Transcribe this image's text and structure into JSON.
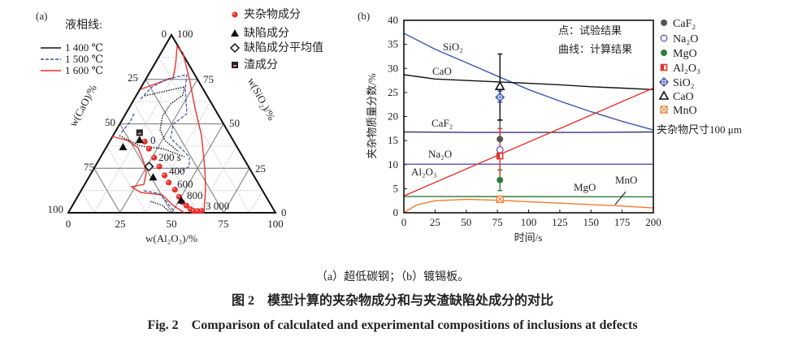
{
  "caption": {
    "sub": "（a）超低碳钢；（b）镀锡板。",
    "cn": "图 2　模型计算的夹杂物成分和与夹渣缺陷处成分的对比",
    "en": "Fig. 2　Comparison of calculated and experimental compositions of inclusions at defects"
  },
  "chart_data": [
    {
      "panel": "(a)",
      "type": "scatter",
      "subtype": "ternary",
      "axes": {
        "bottom": {
          "label": "w(Al₂O₃)/%",
          "ticks": [
            "0",
            "25",
            "50",
            "75",
            "100"
          ]
        },
        "left": {
          "label": "w(CaO)/%",
          "ticks": [
            "0",
            "25",
            "50",
            "75",
            "100"
          ]
        },
        "right": {
          "label": "w(SiO₂)/%",
          "ticks": [
            "100",
            "75",
            "50",
            "25",
            "0"
          ]
        }
      },
      "legend_title": "液相线:",
      "liquidus_legend": [
        {
          "label": "1 400 ℃",
          "color": "#111111",
          "style": "solid"
        },
        {
          "label": "1 500 ℃",
          "color": "#3b4fa8",
          "style": "dashed"
        },
        {
          "label": "1 600 ℃",
          "color": "#e8322b",
          "style": "solid"
        }
      ],
      "marker_legend": [
        {
          "label": "夹杂物成分",
          "marker": "circle",
          "color": "#e8322b"
        },
        {
          "label": "缺陷成分",
          "marker": "triangle",
          "color": "#111111"
        },
        {
          "label": "缺陷成分平均值",
          "marker": "diamond",
          "color": "#111111"
        },
        {
          "label": "渣成分",
          "marker": "square",
          "color": "#111111"
        }
      ],
      "series": [
        {
          "name": "夹杂物成分",
          "points_CaO_Al2O3_SiO2": [
            [
              43,
              17,
              40
            ],
            [
              43,
              21,
              36
            ],
            [
              43,
              26,
              31
            ],
            [
              43,
              31,
              26
            ],
            [
              43,
              36,
              21
            ],
            [
              43,
              40,
              17
            ],
            [
              42,
              45,
              13
            ],
            [
              42,
              49,
              9
            ],
            [
              42,
              52,
              6
            ],
            [
              41,
              55,
              4
            ],
            [
              40,
              58,
              2
            ],
            [
              39,
              60,
              1
            ],
            [
              37,
              62,
              1
            ],
            [
              35,
              64,
              1
            ]
          ]
        },
        {
          "name": "缺陷成分",
          "points_CaO_Al2O3_SiO2": [
            [
              45,
              14,
              41
            ],
            [
              55,
              8,
              37
            ],
            [
              49,
              31,
              20
            ],
            [
              42,
              51,
              7
            ]
          ]
        },
        {
          "name": "缺陷成分平均值",
          "points_CaO_Al2O3_SiO2": [
            [
              48,
              26,
              26
            ]
          ]
        },
        {
          "name": "渣成分",
          "points_CaO_Al2O3_SiO2": [
            [
              43,
              12,
              45
            ]
          ]
        }
      ],
      "time_labels": [
        {
          "text": "0",
          "at_point": 0
        },
        {
          "text": "200 s",
          "at_point": 2
        },
        {
          "text": "400",
          "at_point": 4
        },
        {
          "text": "600",
          "at_point": 6
        },
        {
          "text": "800",
          "at_point": 7
        },
        {
          "text": "3 000",
          "at_point": 10
        }
      ]
    },
    {
      "panel": "(b)",
      "type": "line",
      "xlabel": "时间/s",
      "ylabel": "夹杂物质量分数/%",
      "xlim": [
        0,
        200
      ],
      "ylim": [
        0,
        40
      ],
      "xticks": [
        0,
        25,
        50,
        75,
        100,
        125,
        150,
        175,
        200
      ],
      "yticks": [
        0,
        5,
        10,
        15,
        20,
        25,
        30,
        35,
        40
      ],
      "annotations": [
        "点：试验结果",
        "曲线：计算结果",
        "夹杂物尺寸100 μm"
      ],
      "series": [
        {
          "name": "SiO₂",
          "color": "#3b56b0",
          "x": [
            0,
            25,
            50,
            75,
            100,
            125,
            150,
            175,
            200
          ],
          "y": [
            37.3,
            34.0,
            31.2,
            28.4,
            25.6,
            23.2,
            21.0,
            19.0,
            17.2
          ]
        },
        {
          "name": "CaO",
          "color": "#111111",
          "x": [
            0,
            25,
            50,
            75,
            100,
            125,
            150,
            175,
            200
          ],
          "y": [
            28.7,
            27.8,
            27.5,
            27.2,
            26.9,
            26.6,
            26.2,
            25.9,
            25.6
          ]
        },
        {
          "name": "CaF₂",
          "color": "#3a3470",
          "x": [
            0,
            50,
            100,
            150,
            200
          ],
          "y": [
            16.8,
            16.7,
            16.7,
            16.7,
            16.8
          ]
        },
        {
          "name": "Na₂O",
          "color": "#5a4fb0",
          "x": [
            0,
            50,
            100,
            150,
            200
          ],
          "y": [
            10.1,
            10.1,
            10.1,
            10.1,
            10.1
          ]
        },
        {
          "name": "Al₂O₃",
          "color": "#e8322b",
          "x": [
            0,
            200
          ],
          "y": [
            3.5,
            25.9
          ]
        },
        {
          "name": "MgO",
          "color": "#2f7d3a",
          "x": [
            0,
            200
          ],
          "y": [
            3.4,
            3.3
          ]
        },
        {
          "name": "MnO",
          "color": "#f07b2c",
          "x": [
            0,
            10,
            25,
            50,
            75,
            100,
            125,
            150,
            175,
            200
          ],
          "y": [
            0,
            1.6,
            2.5,
            2.8,
            2.6,
            2.3,
            2.0,
            1.7,
            1.4,
            1.0
          ]
        }
      ],
      "experimental": [
        {
          "name": "CaF₂",
          "marker": "circle-gray",
          "color": "#555555",
          "x": 77,
          "y": 15.3,
          "err": [
            15.3,
            19.2
          ]
        },
        {
          "name": "Na₂O",
          "marker": "circle-open",
          "color": "#6a55c0",
          "x": 77,
          "y": 13.1,
          "err": [
            13.1,
            13.1
          ]
        },
        {
          "name": "MgO",
          "marker": "circle",
          "color": "#2f7d3a",
          "x": 77,
          "y": 6.8,
          "err": [
            4.6,
            8.9
          ]
        },
        {
          "name": "Al₂O₃",
          "marker": "square-half",
          "color": "#e8322b",
          "x": 77,
          "y": 11.8,
          "err": [
            6.5,
            17.5
          ]
        },
        {
          "name": "SiO₂",
          "marker": "diamond-cross",
          "color": "#3b56b0",
          "x": 77,
          "y": 24.0,
          "err": [
            23.0,
            25.3
          ]
        },
        {
          "name": "CaO",
          "marker": "triangle-open",
          "color": "#111111",
          "x": 77,
          "y": 26.3,
          "err": [
            19.3,
            33.0
          ]
        },
        {
          "name": "MnO",
          "marker": "box-x",
          "color": "#f07b2c",
          "x": 77,
          "y": 2.8,
          "err": [
            2.8,
            2.8
          ]
        }
      ]
    }
  ]
}
